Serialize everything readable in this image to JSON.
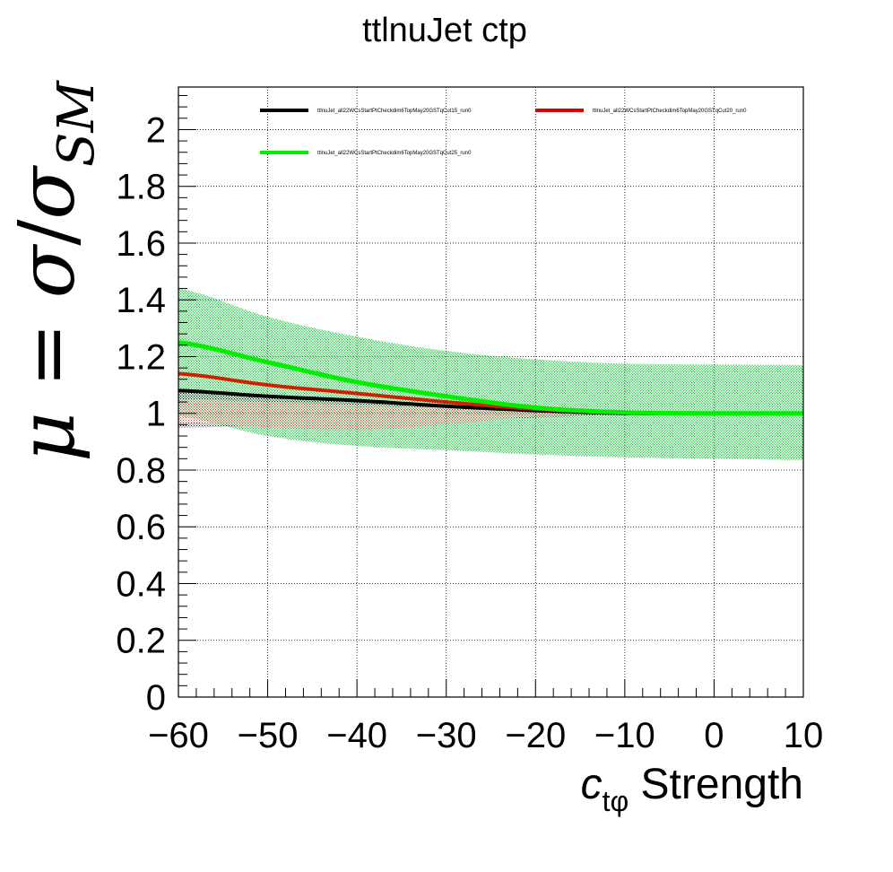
{
  "chart_data": {
    "type": "line",
    "title": "ttlnuJet ctp",
    "xlabel": {
      "symbol": "c",
      "subscript": "tφ",
      "text": " Strength"
    },
    "ylabel": {
      "mu": "μ",
      "equals": " = ",
      "sigma": "σ",
      "slash": "/",
      "sigma2": "σ",
      "subscript": "SM"
    },
    "xlim": [
      -60,
      10
    ],
    "ylim": [
      0,
      2.15
    ],
    "x_ticks": [
      -60,
      -50,
      -40,
      -30,
      -20,
      -10,
      0,
      10
    ],
    "x_tick_labels": [
      "−60",
      "−50",
      "−40",
      "−30",
      "−20",
      "−10",
      "0",
      "10"
    ],
    "y_ticks": [
      0,
      0.2,
      0.4,
      0.6,
      0.8,
      1,
      1.2,
      1.4,
      1.6,
      1.8,
      2
    ],
    "y_tick_labels": [
      "0",
      "0.2",
      "0.4",
      "0.6",
      "0.8",
      "1",
      "1.2",
      "1.4",
      "1.6",
      "1.8",
      "2"
    ],
    "grid": true,
    "legend_position": "top",
    "x": [
      -60,
      -50,
      -40,
      -30,
      -20,
      -10,
      0,
      10
    ],
    "series": [
      {
        "name": "ttlnuJet_all22WCsStartPtCheckdim6TopMay20GSTqCut15_run0",
        "color": "#000000",
        "band_color": "#000000",
        "values": [
          1.08,
          1.06,
          1.045,
          1.025,
          1.01,
          1.0,
          1.0,
          1.0
        ],
        "band_low": [
          0.95,
          0.955,
          0.96,
          0.97,
          0.985,
          0.995,
          1.0,
          1.0
        ],
        "band_high": [
          1.08,
          1.06,
          1.045,
          1.025,
          1.01,
          1.0,
          1.0,
          1.0
        ]
      },
      {
        "name": "ttlnuJet_all22WCsStartPtCheckdim6TopMay20GSTqCut20_run0",
        "color": "#cc2200",
        "band_color": "#dd3333",
        "values": [
          1.14,
          1.1,
          1.07,
          1.04,
          1.015,
          1.003,
          1.0,
          1.0
        ],
        "band_low": [
          0.97,
          0.95,
          0.94,
          0.96,
          0.99,
          0.998,
          1.0,
          1.0
        ],
        "band_high": [
          1.05,
          1.04,
          1.03,
          1.02,
          1.01,
          1.0,
          1.0,
          1.0
        ]
      },
      {
        "name": "ttlnuJet_all22WCsStartPtCheckdim6TopMay20GSTqCut25_run0",
        "color": "#00ee00",
        "band_color": "#33cc55",
        "values": [
          1.25,
          1.18,
          1.11,
          1.06,
          1.02,
          1.003,
          1.0,
          1.0
        ],
        "band_low": [
          0.99,
          0.92,
          0.885,
          0.87,
          0.855,
          0.845,
          0.84,
          0.835
        ],
        "band_high": [
          1.44,
          1.34,
          1.27,
          1.22,
          1.19,
          1.175,
          1.172,
          1.17
        ]
      }
    ]
  }
}
